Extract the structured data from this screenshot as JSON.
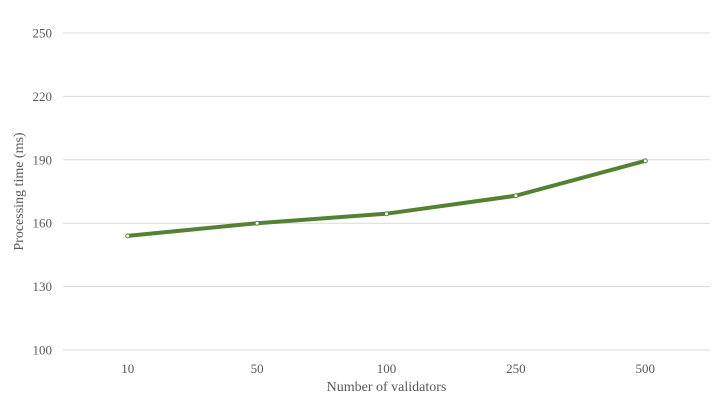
{
  "chart_data": {
    "type": "line",
    "title": "",
    "xlabel": "Number of validators",
    "ylabel": "Processing time (ms)",
    "categories": [
      "10",
      "50",
      "100",
      "250",
      "500"
    ],
    "series": [
      {
        "values": [
          154,
          160,
          164.5,
          173,
          189.5
        ],
        "color": "#548235"
      }
    ],
    "ylim": [
      100,
      250
    ],
    "yticks": [
      100,
      130,
      160,
      190,
      220,
      250
    ],
    "ytick_labels": [
      "100",
      "130",
      "160",
      "190",
      "220",
      "250"
    ],
    "grid": true,
    "legend": "none",
    "marker": "circle",
    "marker_fill": "#ffffff"
  }
}
